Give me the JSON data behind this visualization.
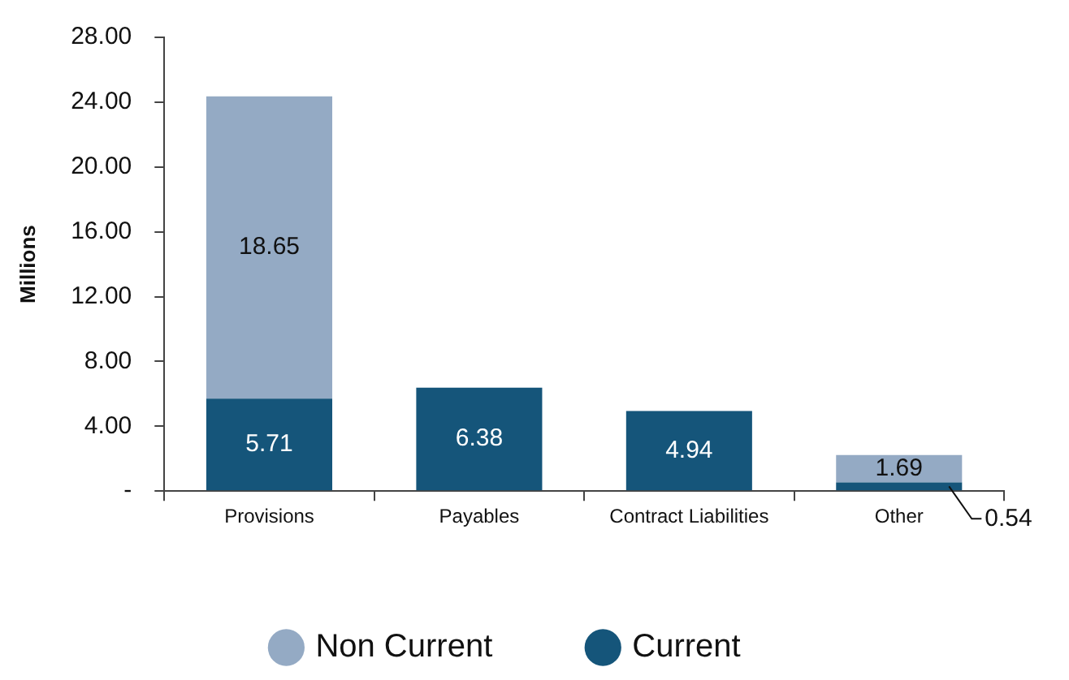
{
  "chart_data": {
    "type": "bar",
    "stacked": true,
    "ylabel": "Millions",
    "categories": [
      "Provisions",
      "Payables",
      "Contract Liabilities",
      "Other"
    ],
    "series": [
      {
        "name": "Current",
        "color": "#15557a",
        "values": [
          5.71,
          6.38,
          4.94,
          0.54
        ]
      },
      {
        "name": "Non Current",
        "color": "#94aac4",
        "values": [
          18.65,
          null,
          null,
          1.69
        ]
      }
    ],
    "ylim": [
      0,
      28
    ],
    "yticks": [
      {
        "value": 0,
        "label": "-"
      },
      {
        "value": 4,
        "label": "4.00"
      },
      {
        "value": 8,
        "label": "8.00"
      },
      {
        "value": 12,
        "label": "12.00"
      },
      {
        "value": 16,
        "label": "16.00"
      },
      {
        "value": 20,
        "label": "20.00"
      },
      {
        "value": 24,
        "label": "24.00"
      },
      {
        "value": 28,
        "label": "28.00"
      }
    ],
    "grid": false,
    "legend": "bottom",
    "data_labels": true
  }
}
